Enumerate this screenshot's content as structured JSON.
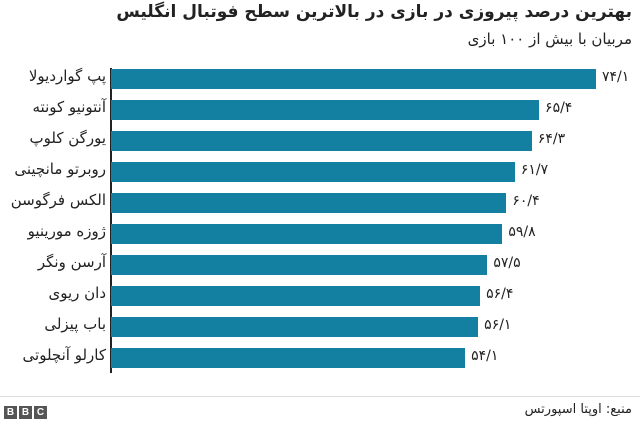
{
  "header": {
    "title": "بهترین درصد پیروزی در بازی در بالاترین سطح فوتبال انگلیس",
    "subtitle": "مربیان با بیش از ۱۰۰ بازی"
  },
  "footer": {
    "logo_letters": [
      "B",
      "B",
      "C"
    ],
    "source": "منبع: اوپتا اسپورتس"
  },
  "colors": {
    "bar": "#1380a1",
    "text": "#222222"
  },
  "chart_data": {
    "type": "bar",
    "orientation": "horizontal",
    "title": "بهترین درصد پیروزی در بازی در بالاترین سطح فوتبال انگلیس",
    "subtitle": "مربیان با بیش از ۱۰۰ بازی",
    "xlabel": "",
    "ylabel": "",
    "grid": false,
    "categories": [
      "پپ گواردیولا",
      "آنتونیو کونته",
      "یورگن کلوپ",
      "روبرتو مانچینی",
      "الکس فرگوسن",
      "ژوزه مورینیو",
      "آرسن ونگر",
      "دان ریوی",
      "باب پیزلی",
      "کارلو آنچلوتی"
    ],
    "values": [
      74.1,
      65.4,
      64.3,
      61.7,
      60.4,
      59.8,
      57.5,
      56.4,
      56.1,
      54.1
    ],
    "value_labels": [
      "۷۴/۱",
      "۶۵/۴",
      "۶۴/۳",
      "۶۱/۷",
      "۶۰/۴",
      "۵۹/۸",
      "۵۷/۵",
      "۵۶/۴",
      "۵۶/۱",
      "۵۴/۱"
    ],
    "source": "منبع: اوپتا اسپورتس"
  }
}
